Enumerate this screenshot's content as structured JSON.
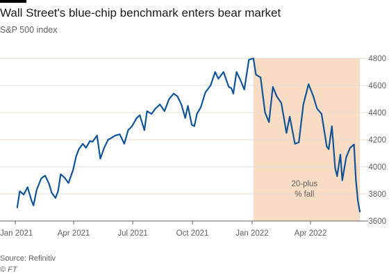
{
  "chart_data": {
    "type": "line",
    "title": "Wall Street's blue-chip benchmark enters bear market",
    "subtitle": "S&P 500 index",
    "source": "Source: Refinitiv",
    "copyright": "© FT",
    "x_tick_labels": [
      "Jan 2021",
      "Apr 2021",
      "Jul 2021",
      "Oct 2021",
      "Jan 2022",
      "Apr 2022"
    ],
    "x_ticks": [
      "2021-01-01",
      "2021-04-01",
      "2021-07-01",
      "2021-10-01",
      "2022-01-01",
      "2022-04-01"
    ],
    "xlim": [
      "2021-01-01",
      "2022-06-16"
    ],
    "y_ticks": [
      3600,
      3800,
      4000,
      4200,
      4400,
      4600,
      4800
    ],
    "ylim": [
      3600,
      4800
    ],
    "y_axis_side": "right",
    "grid": "horizontal",
    "line_color": "#0f5499",
    "shade": {
      "start": "2022-01-03",
      "end": "2022-06-16",
      "color": "#f8dcc4"
    },
    "annotation": [
      "20-plus",
      "% fall"
    ],
    "series": [
      {
        "name": "",
        "x": [
          "2021-01-04",
          "2021-01-08",
          "2021-01-14",
          "2021-01-20",
          "2021-01-26",
          "2021-01-29",
          "2021-02-03",
          "2021-02-10",
          "2021-02-16",
          "2021-02-22",
          "2021-02-26",
          "2021-03-04",
          "2021-03-08",
          "2021-03-12",
          "2021-03-18",
          "2021-03-24",
          "2021-03-31",
          "2021-04-05",
          "2021-04-09",
          "2021-04-15",
          "2021-04-20",
          "2021-04-26",
          "2021-04-30",
          "2021-05-07",
          "2021-05-12",
          "2021-05-18",
          "2021-05-24",
          "2021-05-28",
          "2021-06-04",
          "2021-06-11",
          "2021-06-18",
          "2021-06-24",
          "2021-06-30",
          "2021-07-07",
          "2021-07-12",
          "2021-07-19",
          "2021-07-23",
          "2021-07-30",
          "2021-08-05",
          "2021-08-12",
          "2021-08-19",
          "2021-08-26",
          "2021-09-02",
          "2021-09-08",
          "2021-09-14",
          "2021-09-20",
          "2021-09-24",
          "2021-09-30",
          "2021-10-04",
          "2021-10-08",
          "2021-10-14",
          "2021-10-21",
          "2021-10-29",
          "2021-11-05",
          "2021-11-10",
          "2021-11-18",
          "2021-11-26",
          "2021-11-30",
          "2021-12-03",
          "2021-12-08",
          "2021-12-14",
          "2021-12-20",
          "2021-12-27",
          "2022-01-03",
          "2022-01-07",
          "2022-01-14",
          "2022-01-21",
          "2022-01-27",
          "2022-02-02",
          "2022-02-08",
          "2022-02-15",
          "2022-02-23",
          "2022-02-28",
          "2022-03-08",
          "2022-03-14",
          "2022-03-21",
          "2022-03-29",
          "2022-04-05",
          "2022-04-11",
          "2022-04-18",
          "2022-04-26",
          "2022-04-29",
          "2022-05-04",
          "2022-05-09",
          "2022-05-12",
          "2022-05-17",
          "2022-05-20",
          "2022-05-26",
          "2022-06-01",
          "2022-06-07",
          "2022-06-10",
          "2022-06-13",
          "2022-06-16"
        ],
        "values": [
          3700,
          3820,
          3795,
          3850,
          3750,
          3715,
          3830,
          3915,
          3935,
          3875,
          3810,
          3770,
          3820,
          3945,
          3920,
          3880,
          3975,
          4080,
          4130,
          4170,
          4140,
          4190,
          4185,
          4230,
          4060,
          4140,
          4200,
          4210,
          4230,
          4240,
          4170,
          4270,
          4300,
          4360,
          4380,
          4270,
          4410,
          4390,
          4430,
          4460,
          4410,
          4500,
          4540,
          4520,
          4460,
          4360,
          4450,
          4310,
          4300,
          4390,
          4440,
          4550,
          4600,
          4700,
          4650,
          4700,
          4590,
          4580,
          4540,
          4700,
          4640,
          4570,
          4790,
          4800,
          4680,
          4660,
          4400,
          4330,
          4590,
          4520,
          4470,
          4250,
          4370,
          4170,
          4180,
          4460,
          4610,
          4525,
          4430,
          4390,
          4150,
          4130,
          4300,
          3990,
          3930,
          4090,
          3900,
          4070,
          4140,
          4165,
          3900,
          3750,
          3670
        ]
      }
    ]
  }
}
